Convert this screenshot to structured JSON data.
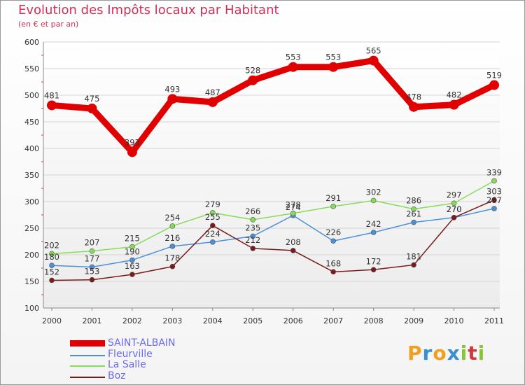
{
  "header": {
    "title": "Evolution des Impôts locaux par Habitant",
    "subtitle": "(en € et par an)"
  },
  "logo": {
    "text": "Proxiti",
    "letters": [
      "P",
      "r",
      "o",
      "x",
      "i",
      "t",
      "i"
    ],
    "letter_colors": [
      "#f0a020",
      "#3a8fd0",
      "#f0a020",
      "#3a8fd0",
      "#8ac43a",
      "#d03a3a",
      "#8ac43a"
    ]
  },
  "chart_data": {
    "type": "line",
    "title": "Evolution des Impôts locaux par Habitant",
    "subtitle": "(en € et par an)",
    "xlabel": "",
    "ylabel": "",
    "x": [
      "2000",
      "2001",
      "2002",
      "2003",
      "2004",
      "2005",
      "2006",
      "2007",
      "2008",
      "2009",
      "2010",
      "2011"
    ],
    "ylim": [
      100,
      600
    ],
    "yticks": [
      "100",
      "150",
      "200",
      "250",
      "300",
      "350",
      "400",
      "450",
      "500",
      "550",
      "600"
    ],
    "grid": "horizontal",
    "legend_position": "bottom-left",
    "series": [
      {
        "name": "SAINT-ALBAIN",
        "color": "#e00000",
        "values": [
          481,
          475,
          393,
          493,
          487,
          528,
          553,
          553,
          565,
          478,
          482,
          519
        ],
        "labels": [
          "481",
          "475",
          "393",
          "493",
          "487",
          "528",
          "553",
          "553",
          "565",
          "478",
          "482",
          "519"
        ]
      },
      {
        "name": "Fleurville",
        "color": "#4a90d8",
        "values": [
          180,
          177,
          190,
          216,
          224,
          235,
          274,
          226,
          242,
          261,
          270,
          287
        ],
        "labels": [
          "180",
          "177",
          "190",
          "216",
          "224",
          "235",
          "274",
          "226",
          "242",
          "261",
          "270",
          "287"
        ]
      },
      {
        "name": "La Salle",
        "color": "#86dc5a",
        "values": [
          202,
          207,
          215,
          254,
          279,
          266,
          278,
          291,
          302,
          286,
          297,
          339
        ],
        "labels": [
          "202",
          "207",
          "215",
          "254",
          "279",
          "266",
          "278",
          "291",
          "302",
          "286",
          "297",
          "339"
        ]
      },
      {
        "name": "Boz",
        "color": "#7a1a1a",
        "values": [
          152,
          153,
          163,
          178,
          255,
          212,
          208,
          168,
          172,
          181,
          270,
          303
        ],
        "labels": [
          "152",
          "153",
          "163",
          "178",
          "255",
          "212",
          "208",
          "168",
          "172",
          "181",
          "270",
          "303"
        ]
      }
    ]
  }
}
